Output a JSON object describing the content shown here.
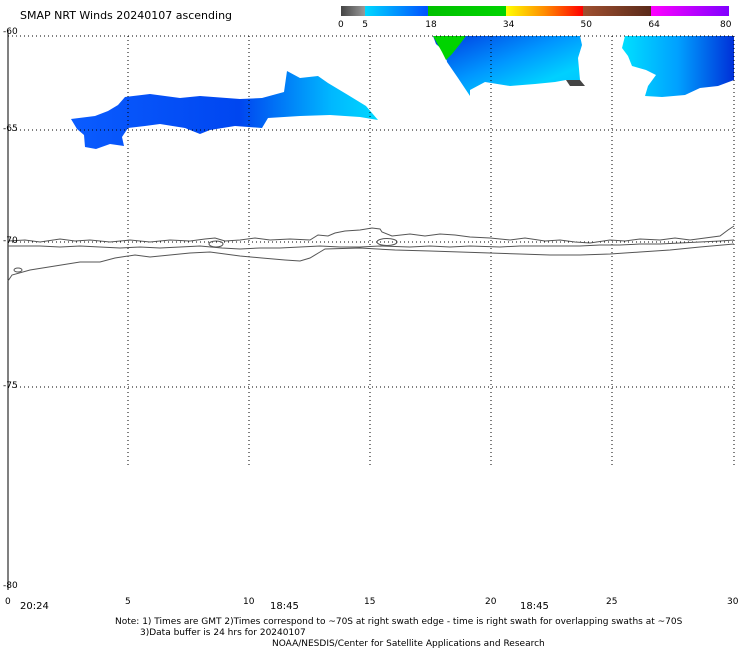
{
  "title": "SMAP NRT Winds 20240107 ascending",
  "colorbar": {
    "labels": [
      "0",
      "5",
      "18",
      "34",
      "50",
      "64",
      "80"
    ],
    "segments": [
      {
        "from": 0,
        "to": 5,
        "colors": [
          "#444444",
          "#9a9a9a"
        ]
      },
      {
        "from": 5,
        "to": 18,
        "colors": [
          "#00d8ff",
          "#0050ff"
        ]
      },
      {
        "from": 18,
        "to": 34,
        "colors": [
          "#00c000",
          "#00d400"
        ]
      },
      {
        "from": 34,
        "to": 50,
        "colors": [
          "#ffff00",
          "#ff8c00",
          "#ff0000"
        ]
      },
      {
        "from": 50,
        "to": 64,
        "colors": [
          "#a05030",
          "#5a2a1a"
        ]
      },
      {
        "from": 64,
        "to": 80,
        "colors": [
          "#ff00ff",
          "#8000ff"
        ]
      }
    ]
  },
  "axes": {
    "lat_labels": [
      "-60",
      "-65",
      "-70",
      "-75",
      "-80"
    ],
    "lon_labels": [
      "0",
      "5",
      "10",
      "15",
      "20",
      "25",
      "30"
    ],
    "grid": true
  },
  "swath_times": [
    "20:24",
    "18:45",
    "18:45"
  ],
  "notes": {
    "line1": "Note: 1) Times are GMT 2)Times correspond to ~70S at right swath edge - time is right swath for overlapping swaths at ~70S",
    "line2": "3)Data buffer is 24 hrs for 20240107",
    "credit": "NOAA/NESDIS/Center for Satellite Applications and Research"
  },
  "colors": {
    "wind_low": "#00d8ff",
    "wind_mid": "#0050ff",
    "wind_high": "#00d400",
    "calm": "#444444",
    "coastline": "#555555"
  }
}
